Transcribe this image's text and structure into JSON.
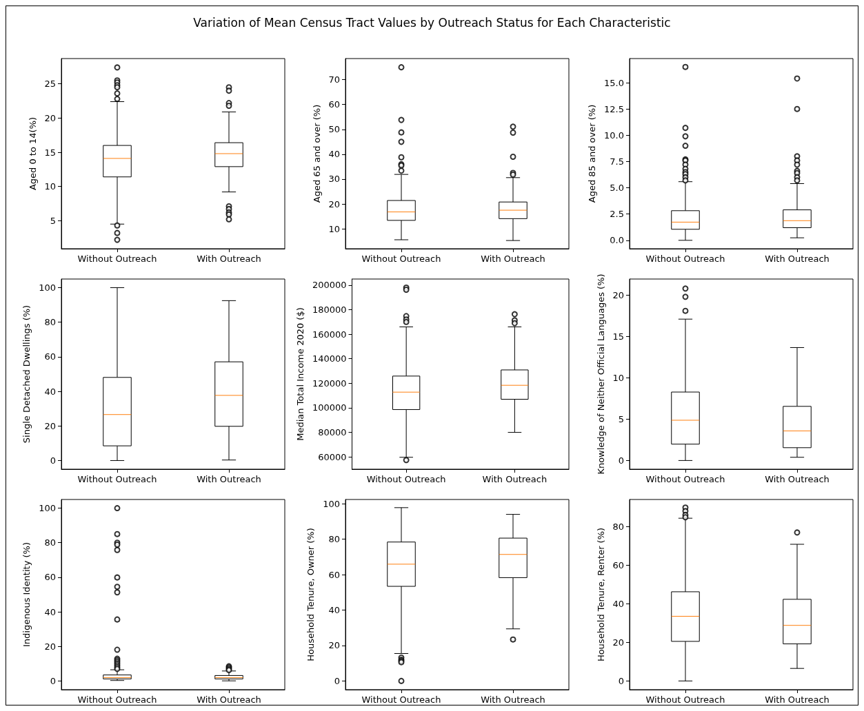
{
  "chart_data": [
    {
      "type": "box",
      "title": "Variation of Mean Census Tract Values by Outreach Status for Each Characteristic",
      "ylabel": "Aged 0 to 14(%)",
      "categories": [
        "Without Outreach",
        "With Outreach"
      ],
      "marker": "circle",
      "ylim": [
        0.9,
        28.7
      ],
      "yticks": [
        5,
        10,
        15,
        20,
        25
      ],
      "boxes": [
        {
          "low": 4.5,
          "q1": 11.4,
          "median": 14.1,
          "q3": 16.0,
          "high": 22.4,
          "outliers": [
            27.4,
            25.5,
            25.2,
            24.8,
            24.5,
            23.6,
            22.8,
            4.3,
            3.2,
            2.2
          ]
        },
        {
          "low": 9.2,
          "q1": 12.9,
          "median": 14.8,
          "q3": 16.4,
          "high": 20.9,
          "outliers": [
            24.5,
            24.0,
            22.2,
            21.8,
            7.1,
            6.7,
            6.2,
            5.9,
            5.2
          ]
        }
      ]
    },
    {
      "type": "box",
      "ylabel": "Aged 65 and over (%)",
      "categories": [
        "Without Outreach",
        "With Outreach"
      ],
      "marker": "circle",
      "ylim": [
        2.0,
        78.5
      ],
      "yticks": [
        10,
        20,
        30,
        40,
        50,
        60,
        70
      ],
      "boxes": [
        {
          "low": 5.6,
          "q1": 13.4,
          "median": 16.8,
          "q3": 21.4,
          "high": 31.9,
          "outliers": [
            75,
            53.8,
            48.8,
            45.0,
            38.8,
            36.0,
            35.5,
            33.4
          ]
        },
        {
          "low": 5.3,
          "q1": 14.1,
          "median": 17.5,
          "q3": 20.8,
          "high": 30.6,
          "outliers": [
            51.1,
            48.7,
            39.0,
            32.5,
            31.8
          ]
        }
      ]
    },
    {
      "type": "box",
      "ylabel": "Aged 85 and over (%)",
      "categories": [
        "Without Outreach",
        "With Outreach"
      ],
      "marker": "circle",
      "ylim": [
        -0.8,
        17.3
      ],
      "yticks": [
        {
          "value": 0,
          "label": "0.0"
        },
        {
          "value": 2.5,
          "label": "2.5"
        },
        {
          "value": 5,
          "label": "5.0"
        },
        {
          "value": 7.5,
          "label": "7.5"
        },
        {
          "value": 10,
          "label": "10.0"
        },
        {
          "value": 12.5,
          "label": "12.5"
        },
        {
          "value": 15,
          "label": "15.0"
        }
      ],
      "boxes": [
        {
          "low": 0,
          "q1": 1.05,
          "median": 1.73,
          "q3": 2.82,
          "high": 5.58,
          "outliers": [
            16.5,
            10.7,
            9.9,
            9.0,
            7.7,
            7.6,
            7.2,
            6.8,
            6.5,
            6.3,
            6.0,
            5.7
          ]
        },
        {
          "low": 0.24,
          "q1": 1.2,
          "median": 1.87,
          "q3": 2.9,
          "high": 5.4,
          "outliers": [
            15.4,
            12.5,
            8.0,
            7.6,
            7.2,
            6.6,
            6.4,
            6.0,
            5.7
          ]
        }
      ]
    },
    {
      "type": "box",
      "ylabel": "Single Detached Dwellings (%)",
      "categories": [
        "Without Outreach",
        "With Outreach"
      ],
      "marker": "circle",
      "ylim": [
        -5,
        105
      ],
      "yticks": [
        0,
        20,
        40,
        60,
        80,
        100
      ],
      "boxes": [
        {
          "low": 0,
          "q1": 8.5,
          "median": 26.6,
          "q3": 48.1,
          "high": 100
        },
        {
          "low": 0.3,
          "q1": 19.8,
          "median": 37.7,
          "q3": 57.1,
          "high": 92.5
        }
      ]
    },
    {
      "type": "box",
      "ylabel": "Median Total Income 2020 ($)",
      "categories": [
        "Without Outreach",
        "With Outreach"
      ],
      "marker": "circle",
      "ylim": [
        50000,
        205000
      ],
      "yticks": [
        60000,
        80000,
        100000,
        120000,
        140000,
        160000,
        180000,
        200000
      ],
      "boxes": [
        {
          "low": 59700,
          "q1": 98600,
          "median": 112800,
          "q3": 125900,
          "high": 166000,
          "outliers": [
            198000,
            196300,
            174800,
            172000,
            170000,
            57400
          ]
        },
        {
          "low": 80000,
          "q1": 107000,
          "median": 118400,
          "q3": 130900,
          "high": 166000,
          "outliers": [
            176300,
            171300,
            169000
          ]
        }
      ]
    },
    {
      "type": "box",
      "ylabel": "Knowledge of Neither Official Languages (%)",
      "categories": [
        "Without Outreach",
        "With Outreach"
      ],
      "marker": "circle",
      "ylim": [
        -1.05,
        21.95
      ],
      "yticks": [
        0,
        5,
        10,
        15,
        20
      ],
      "boxes": [
        {
          "low": 0,
          "q1": 1.98,
          "median": 4.87,
          "q3": 8.28,
          "high": 17.1,
          "outliers": [
            20.8,
            19.8,
            18.1
          ]
        },
        {
          "low": 0.39,
          "q1": 1.55,
          "median": 3.58,
          "q3": 6.55,
          "high": 13.66
        }
      ]
    },
    {
      "type": "box",
      "ylabel": "Indigenous Identity (%)",
      "categories": [
        "Without Outreach",
        "With Outreach"
      ],
      "marker": "circle",
      "ylim": [
        -5,
        105
      ],
      "yticks": [
        0,
        20,
        40,
        60,
        80,
        100
      ],
      "boxes": [
        {
          "low": 0.3,
          "q1": 1.2,
          "median": 2.0,
          "q3": 3.5,
          "high": 6.5,
          "outliers": [
            100,
            85,
            80,
            78.9,
            75.8,
            59.9,
            54.5,
            51.3,
            35.6,
            18.1,
            12.9,
            12,
            11,
            10,
            9,
            8,
            7
          ]
        },
        {
          "low": 0.1,
          "q1": 1.2,
          "median": 2.0,
          "q3": 3.2,
          "high": 5.8,
          "outliers": [
            8.5,
            7.8,
            7.0,
            6.3
          ]
        }
      ]
    },
    {
      "type": "box",
      "ylabel": "Household Tenure, Owner (%)",
      "categories": [
        "Without Outreach",
        "With Outreach"
      ],
      "marker": "circle",
      "ylim": [
        -4.9,
        102.4
      ],
      "yticks": [
        0,
        20,
        40,
        60,
        80,
        100
      ],
      "boxes": [
        {
          "low": 15.5,
          "q1": 53.4,
          "median": 65.9,
          "q3": 78.4,
          "high": 97.8,
          "outliers": [
            13.2,
            12,
            11.3,
            10.6,
            0
          ]
        },
        {
          "low": 29.4,
          "q1": 58.3,
          "median": 71.4,
          "q3": 80.6,
          "high": 94,
          "outliers": [
            23.4
          ]
        }
      ]
    },
    {
      "type": "box",
      "ylabel": "Household Tenure, Renter (%)",
      "categories": [
        "Without Outreach",
        "With Outreach"
      ],
      "marker": "circle",
      "ylim": [
        -4.5,
        94
      ],
      "yticks": [
        0,
        20,
        40,
        60,
        80
      ],
      "boxes": [
        {
          "low": 0,
          "q1": 20.5,
          "median": 33.5,
          "q3": 46.2,
          "high": 84.3,
          "outliers": [
            89.8,
            88,
            86,
            84.8
          ]
        },
        {
          "low": 6.5,
          "q1": 19.2,
          "median": 28.8,
          "q3": 42.3,
          "high": 70.8,
          "outliers": [
            76.9
          ]
        }
      ]
    }
  ]
}
